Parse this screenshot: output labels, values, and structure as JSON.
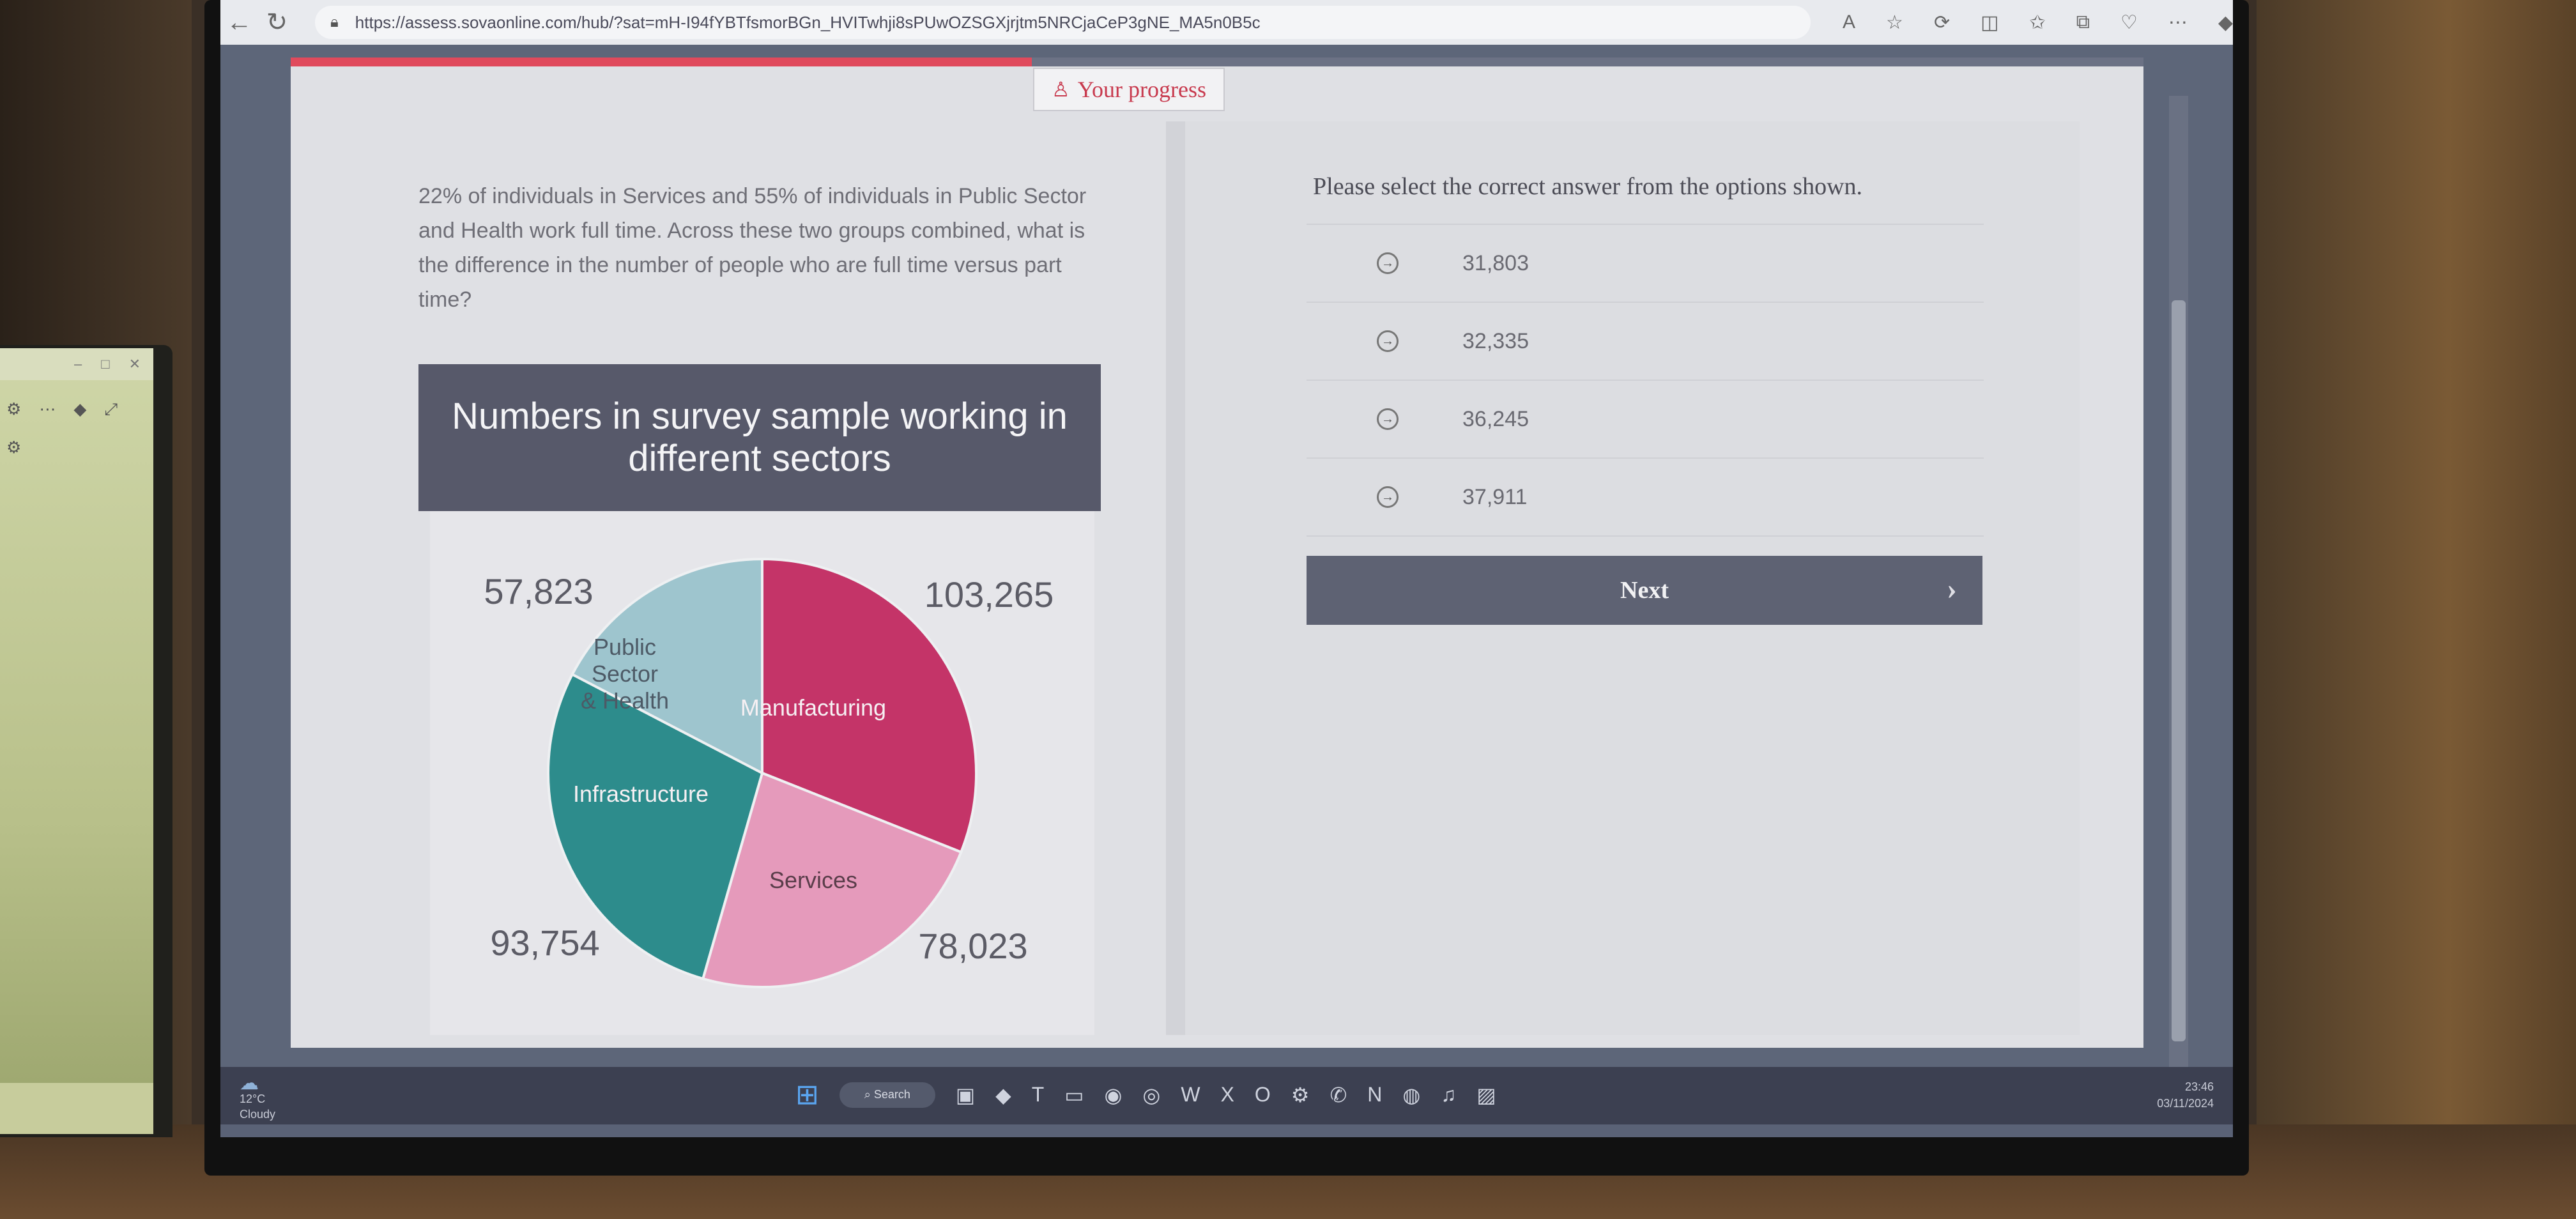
{
  "browser": {
    "url": "https://assess.sovaonline.com/hub/?sat=mH-I94fYBTfsmorBGn_HVITwhji8sPUwOZSGXjrjtm5NRCjaCeP3gNE_MA5n0B5c"
  },
  "progress": {
    "label": "Your progress",
    "fraction": 0.4
  },
  "question": {
    "text": "22% of individuals in Services and 55% of individuals in Public Sector and Health work full time. Across these two groups combined, what is the difference in the number of people who are full time versus part time?"
  },
  "chart_data": {
    "type": "pie",
    "title": "Numbers in survey sample working in different sectors",
    "categories": [
      "Manufacturing",
      "Services",
      "Infrastructure",
      "Public Sector & Health"
    ],
    "values": [
      103265,
      78023,
      93754,
      57823
    ],
    "value_labels": [
      "103,265",
      "78,023",
      "93,754",
      "57,823"
    ],
    "colors": [
      "#c43468",
      "#e59abb",
      "#2d8c8c",
      "#9ec5ce"
    ],
    "legend": "none"
  },
  "answers": {
    "instruction": "Please select the correct answer from the options shown.",
    "options": [
      "31,803",
      "32,335",
      "36,245",
      "37,911"
    ],
    "next_label": "Next"
  },
  "taskbar": {
    "temperature": "12°C",
    "weather": "Cloudy",
    "search_label": "Search",
    "time": "23:46",
    "date": "03/11/2024"
  }
}
